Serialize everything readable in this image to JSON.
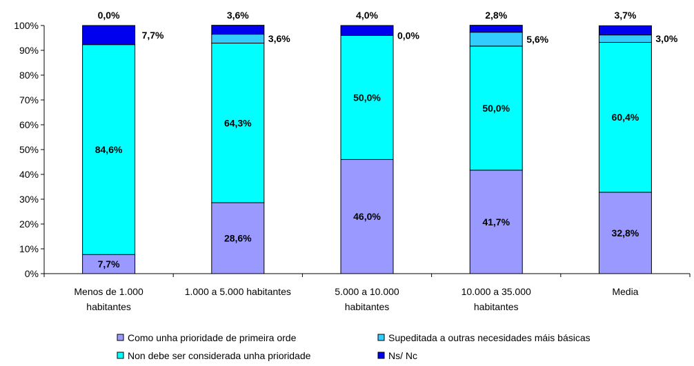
{
  "chart_data": {
    "type": "bar",
    "stacked": true,
    "percent": true,
    "categories": [
      [
        "Menos de 1.000",
        "habitantes"
      ],
      [
        "1.000 a 5.000 habitantes"
      ],
      [
        "5.000 a 10.000",
        "habitantes"
      ],
      [
        "10.000 a 35.000",
        "habitantes"
      ],
      [
        "Media"
      ]
    ],
    "ylim": [
      0,
      100
    ],
    "yticks": [
      "0%",
      "10%",
      "20%",
      "30%",
      "40%",
      "50%",
      "60%",
      "70%",
      "80%",
      "90%",
      "100%"
    ],
    "series": [
      {
        "name": "Como unha prioridade de primeira orde",
        "color": "#9999ff",
        "values": [
          7.7,
          28.6,
          46.0,
          41.7,
          32.8
        ],
        "labels": [
          "7,7%",
          "28,6%",
          "46,0%",
          "41,7%",
          "32,8%"
        ]
      },
      {
        "name": "Non debe ser considerada unha prioridade",
        "color": "#00ffff",
        "values": [
          84.6,
          64.3,
          50.0,
          50.0,
          60.4
        ],
        "labels": [
          "84,6%",
          "64,3%",
          "50,0%",
          "50,0%",
          "60,4%"
        ]
      },
      {
        "name": "Supeditada a outras necesidades máis básicas",
        "color": "#33ccff",
        "values": [
          0.0,
          3.6,
          0.0,
          5.6,
          3.0
        ],
        "labels": [
          "0,0%",
          "3,6%",
          "0,0%",
          "5,6%",
          "3,0%"
        ]
      },
      {
        "name": "Ns/ Nc",
        "color": "#0000ee",
        "values": [
          7.7,
          3.6,
          4.0,
          2.8,
          3.7
        ],
        "labels": [
          "7,7%",
          "3,6%",
          "4,0%",
          "2,8%",
          "3,7%"
        ]
      }
    ],
    "legend": {
      "placement": "bottom",
      "order": [
        0,
        2,
        1,
        3
      ]
    }
  }
}
